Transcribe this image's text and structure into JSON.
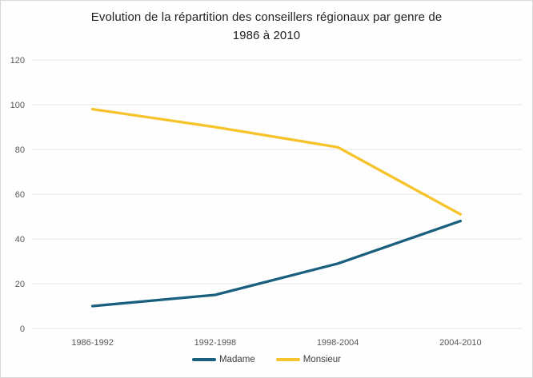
{
  "chart_data": {
    "type": "line",
    "title": "Evolution de la répartition des conseillers régionaux par genre de 1986 à 2010",
    "title_lines": [
      "Evolution de la répartition des conseillers régionaux par genre de",
      "1986 à 2010"
    ],
    "categories": [
      "1986-1992",
      "1992-1998",
      "1998-2004",
      "2004-2010"
    ],
    "series": [
      {
        "name": "Madame",
        "color": "#1A5F7D",
        "values": [
          10,
          15,
          29,
          48
        ]
      },
      {
        "name": "Monsieur",
        "color": "#F5C32B",
        "values": [
          98,
          90,
          81,
          51
        ]
      }
    ],
    "y_axis": {
      "min": 0,
      "max": 120,
      "step": 20,
      "ticks": [
        0,
        20,
        40,
        60,
        80,
        100,
        120
      ]
    },
    "xlabel": "",
    "ylabel": "",
    "grid": "horizontal",
    "legend_position": "bottom",
    "colors": {
      "grid_line": "#E7E7E7",
      "axis_text": "#595959",
      "title_text": "#212121",
      "background": "#FEFEFE",
      "frame_border": "#D8D8D8"
    }
  }
}
